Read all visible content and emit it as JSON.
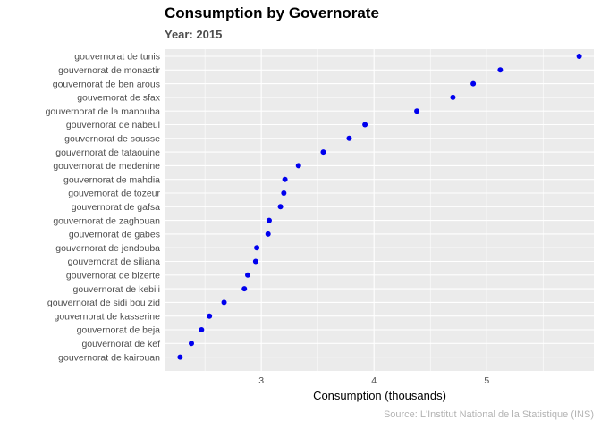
{
  "chart_data": {
    "type": "scatter",
    "title": "Consumption by Governorate",
    "subtitle": "Year: 2015",
    "xlabel": "Consumption (thousands)",
    "ylabel": "",
    "caption": "Source: L'Institut National de la Statistique (INS)",
    "xlim": [
      2.15,
      5.95
    ],
    "xticks": [
      3,
      4,
      5
    ],
    "grid": true,
    "legend": "none",
    "point_color": "#0000ee",
    "panel_color": "#ebebeb",
    "categories": [
      "gouvernorat de tunis",
      "gouvernorat de monastir",
      "gouvernorat de ben arous",
      "gouvernorat de sfax",
      "gouvernorat de la manouba",
      "gouvernorat de nabeul",
      "gouvernorat de sousse",
      "gouvernorat de tataouine",
      "gouvernorat de medenine",
      "gouvernorat de mahdia",
      "gouvernorat de tozeur",
      "gouvernorat de gafsa",
      "gouvernorat de zaghouan",
      "gouvernorat de gabes",
      "gouvernorat de jendouba",
      "gouvernorat de siliana",
      "gouvernorat de bizerte",
      "gouvernorat de kebili",
      "gouvernorat de sidi bou zid",
      "gouvernorat de kasserine",
      "gouvernorat de beja",
      "gouvernorat de kef",
      "gouvernorat de kairouan"
    ],
    "values": [
      5.82,
      5.12,
      4.88,
      4.7,
      4.38,
      3.92,
      3.78,
      3.55,
      3.33,
      3.21,
      3.2,
      3.17,
      3.07,
      3.06,
      2.96,
      2.95,
      2.88,
      2.85,
      2.67,
      2.54,
      2.47,
      2.38,
      2.28
    ]
  }
}
